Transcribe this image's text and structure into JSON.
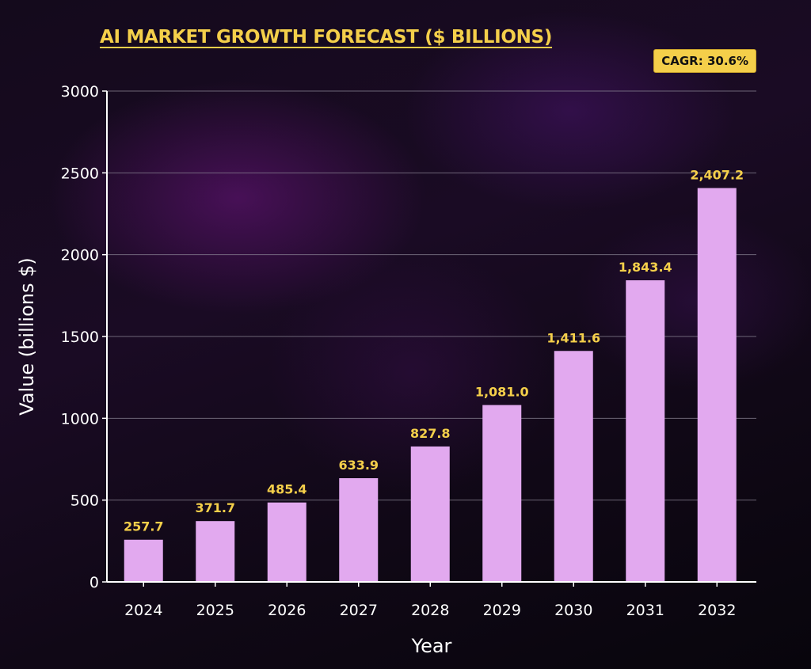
{
  "chart_data": {
    "type": "bar",
    "title": "AI MARKET GROWTH FORECAST ($ BILLIONS)",
    "badge": "CAGR: 30.6%",
    "xlabel": "Year",
    "ylabel": "Value (billions $)",
    "ylim": [
      0,
      3000
    ],
    "yticks": [
      0,
      500,
      1000,
      1500,
      2000,
      2500,
      3000
    ],
    "grid": true,
    "categories": [
      "2024",
      "2025",
      "2026",
      "2027",
      "2028",
      "2029",
      "2030",
      "2031",
      "2032"
    ],
    "values": [
      257.7,
      371.7,
      485.4,
      633.9,
      827.8,
      1081.0,
      1411.6,
      1843.4,
      2407.2
    ],
    "value_labels": [
      "257.7",
      "371.7",
      "485.4",
      "633.9",
      "827.8",
      "1,081.0",
      "1,411.6",
      "1,843.4",
      "2,407.2"
    ],
    "colors": {
      "bar": "#e2a9ef",
      "value_label": "#f4cf4a",
      "title": "#f4cf4a",
      "badge_bg": "#f4cf4a",
      "axis": "#ffffff",
      "grid": "#8a8494"
    }
  }
}
